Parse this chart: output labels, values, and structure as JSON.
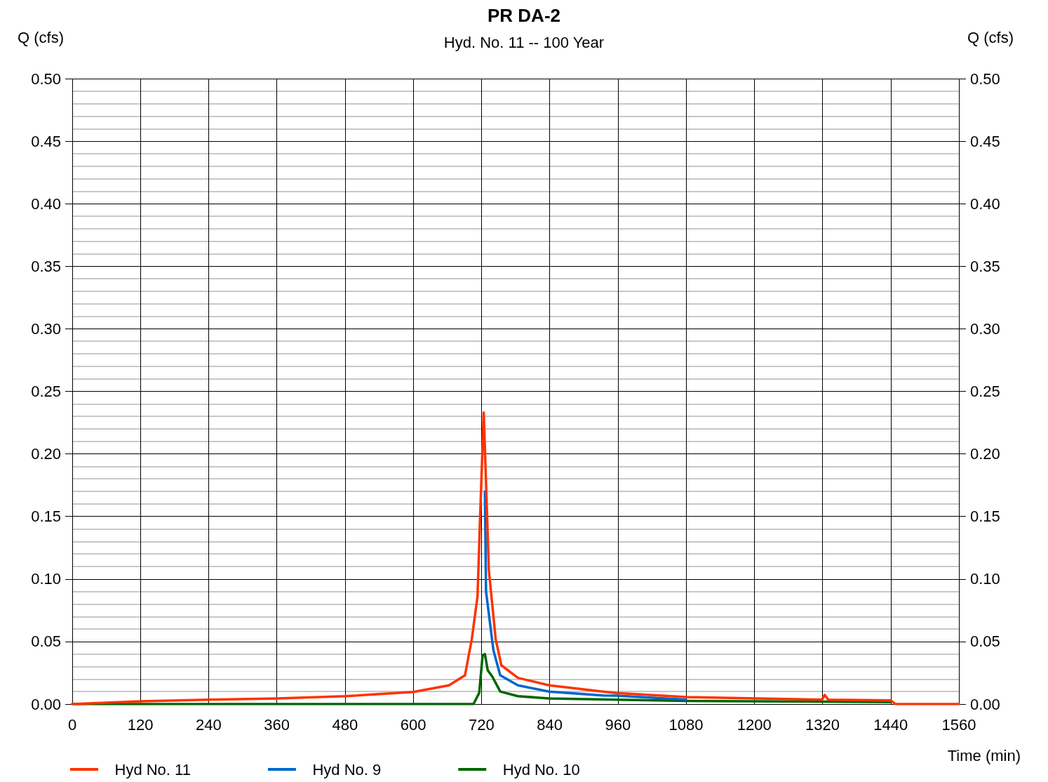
{
  "chart_data": {
    "type": "line",
    "title": "PR DA-2",
    "subtitle": "Hyd. No. 11 -- 100 Year",
    "xlabel": "Time (min)",
    "ylabel": "Q (cfs)",
    "y2label": "Q (cfs)",
    "xlim": [
      0,
      1560
    ],
    "xticks": [
      0,
      120,
      240,
      360,
      480,
      600,
      720,
      840,
      960,
      1080,
      1200,
      1320,
      1440,
      1560
    ],
    "ylim": [
      0,
      0.5
    ],
    "yticks": [
      {
        "value": 0,
        "label": "0.00"
      },
      {
        "value": 0.05,
        "label": "0.05"
      },
      {
        "value": 0.1,
        "label": "0.10"
      },
      {
        "value": 0.15,
        "label": "0.15"
      },
      {
        "value": 0.2,
        "label": "0.20"
      },
      {
        "value": 0.25,
        "label": "0.25"
      },
      {
        "value": 0.3,
        "label": "0.30"
      },
      {
        "value": 0.35,
        "label": "0.35"
      },
      {
        "value": 0.4,
        "label": "0.40"
      },
      {
        "value": 0.45,
        "label": "0.45"
      },
      {
        "value": 0.5,
        "label": "0.50"
      }
    ],
    "y2lim": [
      0,
      0.5
    ],
    "y2ticks": [
      {
        "value": 0,
        "label": "0.00"
      },
      {
        "value": 0.05,
        "label": "0.05"
      },
      {
        "value": 0.1,
        "label": "0.10"
      },
      {
        "value": 0.15,
        "label": "0.15"
      },
      {
        "value": 0.2,
        "label": "0.20"
      },
      {
        "value": 0.25,
        "label": "0.25"
      },
      {
        "value": 0.3,
        "label": "0.30"
      },
      {
        "value": 0.35,
        "label": "0.35"
      },
      {
        "value": 0.4,
        "label": "0.40"
      },
      {
        "value": 0.45,
        "label": "0.45"
      },
      {
        "value": 0.5,
        "label": "0.50"
      }
    ],
    "grid": true,
    "legend": "bottom left",
    "marker": "none",
    "line_style": "solid",
    "series": [
      {
        "name": "Hyd No. 11",
        "color": "#ff3300",
        "x": [
          0,
          120,
          240,
          360,
          480,
          600,
          663,
          691,
          703,
          713,
          718,
          724,
          733,
          745,
          755,
          784,
          839,
          934,
          958,
          1080,
          1319,
          1324,
          1330,
          1440,
          1448,
          1560
        ],
        "values": [
          0,
          0.0022,
          0.0035,
          0.0045,
          0.0063,
          0.0097,
          0.015,
          0.023,
          0.052,
          0.086,
          0.155,
          0.233,
          0.107,
          0.052,
          0.031,
          0.021,
          0.015,
          0.01,
          0.0088,
          0.0056,
          0.0035,
          0.0073,
          0.0035,
          0.003,
          0,
          0
        ]
      },
      {
        "name": "Hyd No. 9",
        "color": "#0066cc",
        "x": [
          726,
          728,
          741,
          753,
          784,
          839,
          934,
          958,
          1080
        ],
        "values": [
          0.17,
          0.09,
          0.043,
          0.023,
          0.015,
          0.01,
          0.0069,
          0.0067,
          0.0035
        ]
      },
      {
        "name": "Hyd No. 10",
        "color": "#006600",
        "x": [
          0,
          600,
          706,
          716,
          722,
          726,
          731,
          739,
          753,
          784,
          839,
          958,
          1080,
          1320,
          1440
        ],
        "values": [
          0,
          0,
          0,
          0.009,
          0.039,
          0.04,
          0.027,
          0.022,
          0.01,
          0.0063,
          0.0045,
          0.0035,
          0.0025,
          0.002,
          0.0015
        ]
      }
    ]
  }
}
